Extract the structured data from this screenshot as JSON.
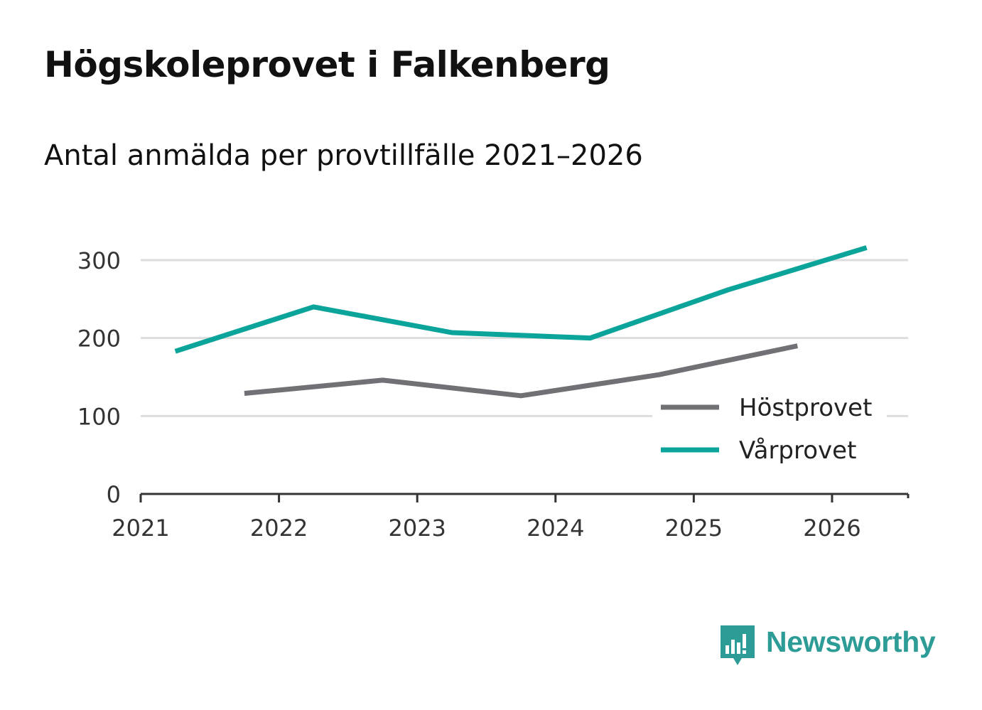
{
  "title": "Högskoleprovet i Falkenberg",
  "subtitle": "Antal anmälda per provtillfälle 2021–2026",
  "brand": {
    "name": "Newsworthy",
    "color": "#2e9c96"
  },
  "colors": {
    "host": "#717075",
    "var": "#0aa49a",
    "grid": "#dddddd",
    "axis": "#333333"
  },
  "chart_data": {
    "type": "line",
    "title": "Högskoleprovet i Falkenberg",
    "subtitle": "Antal anmälda per provtillfälle 2021–2026",
    "xlabel": "",
    "ylabel": "",
    "xlim": [
      2021,
      2026.55
    ],
    "ylim": [
      0,
      300
    ],
    "x_ticks": [
      2021,
      2022,
      2023,
      2024,
      2025,
      2026
    ],
    "x_tick_labels": [
      "2021",
      "2022",
      "2023",
      "2024",
      "2025",
      "2026"
    ],
    "y_ticks": [
      0,
      100,
      200,
      300
    ],
    "y_tick_labels": [
      "0",
      "100",
      "200",
      "300"
    ],
    "grid": true,
    "legend_position": "bottom-right",
    "series": [
      {
        "name": "Höstprovet",
        "key": "host",
        "x": [
          2021.75,
          2022.75,
          2023.75,
          2024.75,
          2025.75
        ],
        "values": [
          129,
          146,
          126,
          153,
          190
        ]
      },
      {
        "name": "Vårprovet",
        "key": "var",
        "x": [
          2021.25,
          2022.25,
          2023.25,
          2024.25,
          2025.25,
          2026.25
        ],
        "values": [
          183,
          240,
          207,
          200,
          262,
          316
        ]
      }
    ]
  }
}
